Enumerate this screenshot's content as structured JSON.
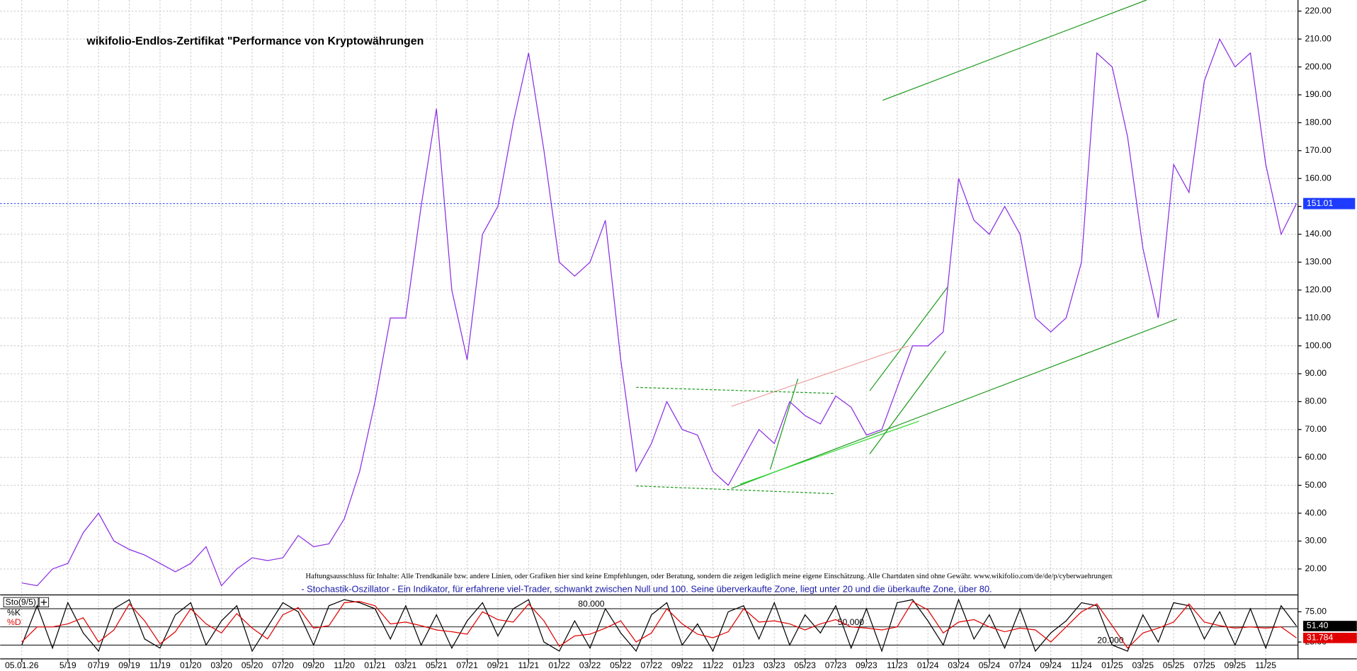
{
  "chart_data": [
    {
      "type": "line",
      "title": "wikifolio-Endlos-Zertifikat \"Performance von Kryptowährungen",
      "disclaimer": "Haftungsausschluss für Inhalte: Alle Trendkanäle bzw. andere Linien, oder Grafiken hier sind keine Empfehlungen, oder Beratung, sondern die zeigen lediglich meine eigene Einschätzung. Alle Chartdaten sind ohne Gewähr.  www.wikifolio.com/de/de/p/cyberwaehrungen",
      "indicator_description": "- Stochastik-Oszillator - Ein Indikator, für erfahrene viel-Trader, schwankt zwischen Null und 100. Seine überverkaufte Zone, liegt unter 20 und die überkaufte Zone, über 80.",
      "categories": [
        "05.01.26",
        null,
        null,
        "5/19",
        null,
        "07/19",
        null,
        "09/19",
        null,
        "11/19",
        null,
        "01/20",
        null,
        "03/20",
        null,
        "05/20",
        null,
        "07/20",
        null,
        "09/20",
        null,
        "11/20",
        null,
        "01/21",
        null,
        "03/21",
        null,
        "05/21",
        null,
        "07/21",
        null,
        "09/21",
        null,
        "11/21",
        null,
        "01/22",
        null,
        "03/22",
        null,
        "05/22",
        null,
        "07/22",
        null,
        "09/22",
        null,
        "11/22",
        null,
        "01/23",
        null,
        "03/23",
        null,
        "05/23",
        null,
        "07/23",
        null,
        "09/23",
        null,
        "11/23",
        null,
        "01/24",
        null,
        "03/24",
        null,
        "05/24",
        null,
        "07/24",
        null,
        "09/24",
        null,
        "11/24",
        null,
        "01/25",
        null,
        "03/25",
        null,
        "05/25",
        null,
        "07/25",
        null,
        "09/25",
        null,
        "11/25",
        null,
        null
      ],
      "values": [
        15,
        14,
        20,
        22,
        33,
        40,
        30,
        27,
        25,
        22,
        19,
        22,
        28,
        14,
        20,
        24,
        23,
        24,
        32,
        28,
        29,
        38,
        55,
        80,
        110,
        110,
        150,
        185,
        120,
        95,
        140,
        150,
        180,
        205,
        170,
        130,
        125,
        130,
        145,
        95,
        55,
        65,
        80,
        70,
        68,
        55,
        50,
        60,
        70,
        65,
        80,
        75,
        72,
        82,
        78,
        68,
        70,
        85,
        100,
        100,
        105,
        160,
        145,
        140,
        150,
        140,
        110,
        105,
        110,
        130,
        205,
        200,
        175,
        135,
        110,
        165,
        155,
        195,
        210,
        200,
        205,
        165,
        140,
        151.01
      ],
      "color": "#8a2be2",
      "last_value_color": "#1e3cff",
      "ylim": [
        10.7,
        224
      ],
      "yticks": [
        {
          "value": 20,
          "label": "20.00"
        },
        {
          "value": 30,
          "label": "30.00"
        },
        {
          "value": 40,
          "label": "40.00"
        },
        {
          "value": 50,
          "label": "50.00"
        },
        {
          "value": 60,
          "label": "60.00"
        },
        {
          "value": 70,
          "label": "70.00"
        },
        {
          "value": 80,
          "label": "80.00"
        },
        {
          "value": 90,
          "label": "90.00"
        },
        {
          "value": 100,
          "label": "100.00"
        },
        {
          "value": 110,
          "label": "110.00"
        },
        {
          "value": 120,
          "label": "120.00"
        },
        {
          "value": 130,
          "label": "130.00"
        },
        {
          "value": 140,
          "label": "140.00"
        },
        {
          "value": 150,
          "label": "150.00"
        },
        {
          "value": 160,
          "label": "160.00"
        },
        {
          "value": 170,
          "label": "170.00"
        },
        {
          "value": 180,
          "label": "180.00"
        },
        {
          "value": 190,
          "label": "190.00"
        },
        {
          "value": 200,
          "label": "200.00"
        },
        {
          "value": 210,
          "label": "210.00"
        },
        {
          "value": 220,
          "label": "220.00"
        }
      ],
      "grid": true
    },
    {
      "type": "line",
      "label": "Sto(9/5)",
      "series": [
        {
          "name": "%K",
          "color": "#000000",
          "values": [
            20,
            85,
            15,
            90,
            40,
            10,
            80,
            95,
            30,
            15,
            70,
            90,
            20,
            60,
            85,
            10,
            50,
            90,
            75,
            20,
            85,
            95,
            90,
            80,
            30,
            85,
            20,
            70,
            15,
            60,
            90,
            35,
            80,
            95,
            25,
            10,
            60,
            15,
            80,
            40,
            10,
            70,
            90,
            20,
            55,
            10,
            75,
            85,
            30,
            90,
            20,
            70,
            40,
            85,
            15,
            80,
            10,
            90,
            95,
            60,
            20,
            95,
            30,
            70,
            15,
            80,
            10,
            40,
            60,
            90,
            85,
            20,
            10,
            70,
            25,
            90,
            85,
            30,
            75,
            20,
            80,
            15,
            85,
            51.4
          ],
          "value_labels": [
            null,
            null,
            null,
            null,
            null,
            null,
            null,
            null,
            null,
            null,
            null,
            null,
            null,
            null,
            null,
            null,
            null,
            null,
            null,
            null,
            null,
            null,
            null,
            null,
            null,
            null,
            null,
            null,
            null,
            null,
            null,
            null,
            null,
            null,
            null,
            null,
            null,
            null,
            null,
            null,
            null,
            null,
            null,
            null,
            null,
            null,
            null,
            null,
            null,
            null,
            null,
            null,
            null,
            null,
            null,
            null,
            null,
            null,
            null,
            null,
            null,
            null,
            null,
            null,
            null,
            null,
            null,
            null,
            null,
            null,
            null,
            null,
            null,
            null,
            null,
            null,
            null,
            null,
            null,
            null,
            null,
            null,
            null,
            "51.40"
          ]
        },
        {
          "name": "%D",
          "color": "#e00000",
          "values": [
            25,
            50,
            50,
            55,
            65,
            25,
            45,
            88,
            60,
            22,
            42,
            80,
            55,
            40,
            72,
            48,
            30,
            70,
            82,
            48,
            52,
            90,
            92,
            85,
            55,
            58,
            52,
            45,
            42,
            38,
            75,
            62,
            58,
            88,
            60,
            18,
            35,
            38,
            48,
            60,
            25,
            40,
            80,
            55,
            38,
            32,
            42,
            80,
            58,
            60,
            55,
            45,
            55,
            62,
            50,
            48,
            45,
            50,
            92,
            78,
            40,
            58,
            62,
            50,
            42,
            48,
            45,
            25,
            50,
            75,
            88,
            52,
            15,
            40,
            48,
            58,
            88,
            58,
            52,
            48,
            50,
            48,
            50,
            31.784
          ],
          "value_labels": [
            null,
            null,
            null,
            null,
            null,
            null,
            null,
            null,
            null,
            null,
            null,
            null,
            null,
            null,
            null,
            null,
            null,
            null,
            null,
            null,
            null,
            null,
            null,
            null,
            null,
            null,
            null,
            null,
            null,
            null,
            null,
            null,
            null,
            null,
            null,
            null,
            null,
            null,
            null,
            null,
            null,
            null,
            null,
            null,
            null,
            null,
            null,
            null,
            null,
            null,
            null,
            null,
            null,
            null,
            null,
            null,
            null,
            null,
            null,
            null,
            null,
            null,
            null,
            null,
            null,
            null,
            null,
            null,
            null,
            null,
            null,
            null,
            null,
            null,
            null,
            null,
            null,
            null,
            null,
            null,
            null,
            null,
            null,
            "31.784"
          ]
        }
      ],
      "ylim": [
        0,
        100
      ],
      "yticks": [
        {
          "value": 75,
          "label": "75.00"
        },
        {
          "value": 25,
          "label": "25.00"
        }
      ],
      "levels": [
        {
          "value": 80,
          "label": "80.000"
        },
        {
          "value": 50,
          "label": "50.000"
        },
        {
          "value": 20,
          "label": "20.000"
        }
      ]
    }
  ]
}
